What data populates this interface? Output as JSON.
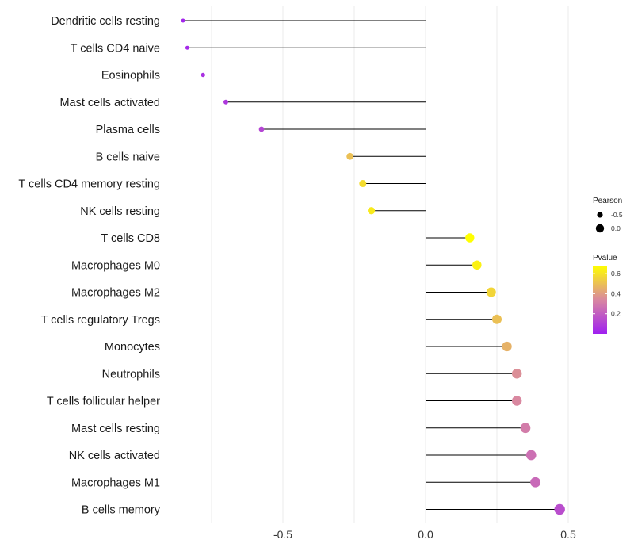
{
  "chart_data": {
    "type": "lollipop",
    "categories": [
      "Dendritic cells resting",
      "T cells CD4 naive",
      "Eosinophils",
      "Mast cells activated",
      "Plasma cells",
      "B cells naive",
      "T cells CD4 memory resting",
      "NK cells resting",
      "T cells CD8",
      "Macrophages M0",
      "Macrophages M2",
      "T cells regulatory  Tregs ",
      "Monocytes",
      "Neutrophils",
      "T cells follicular helper",
      "Mast cells resting",
      "NK cells activated",
      "Macrophages M1",
      "B cells memory"
    ],
    "values": [
      -0.85,
      -0.835,
      -0.78,
      -0.7,
      -0.575,
      -0.265,
      -0.22,
      -0.19,
      0.155,
      0.18,
      0.23,
      0.25,
      0.285,
      0.32,
      0.32,
      0.35,
      0.37,
      0.385,
      0.47
    ],
    "pvalues": [
      0.02,
      0.03,
      0.06,
      0.08,
      0.12,
      0.5,
      0.58,
      0.62,
      0.68,
      0.64,
      0.56,
      0.5,
      0.46,
      0.36,
      0.34,
      0.3,
      0.26,
      0.24,
      0.15
    ],
    "xlim": [
      -0.9,
      0.55
    ],
    "xticks": [
      -0.5,
      0.0,
      0.5
    ],
    "xtick_labels": [
      "-0.5",
      "0.0",
      "0.5"
    ],
    "title": "",
    "xlabel": "",
    "ylabel": "",
    "legend_size": {
      "title": "Pearson",
      "entries": [
        {
          "label": "-0.5",
          "value": -0.5
        },
        {
          "label": "0.0",
          "value": 0.0
        }
      ]
    },
    "legend_color": {
      "title": "Pvalue",
      "ticks": [
        {
          "label": "0.6",
          "value": 0.6
        },
        {
          "label": "0.4",
          "value": 0.4
        },
        {
          "label": "0.2",
          "value": 0.2
        }
      ],
      "range": [
        0.0,
        0.68
      ],
      "low_color": "#a020f0",
      "mid_color": "#d988a0",
      "high_color": "#ffff00"
    },
    "colors": {
      "segment": "#000000",
      "gridline": "#ebebeb"
    }
  }
}
